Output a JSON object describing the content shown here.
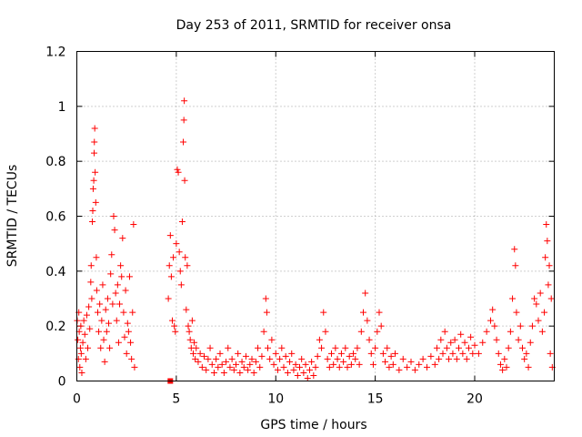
{
  "chart_data": {
    "type": "scatter",
    "title": "Day 253 of 2011, SRMTID for receiver onsa",
    "xlabel": "GPS time / hours",
    "ylabel": "SRMTID / TECUs",
    "xlim": [
      0,
      24
    ],
    "ylim": [
      0,
      1.2
    ],
    "xticks": [
      0,
      5,
      10,
      15,
      20
    ],
    "xtick_labels": [
      "0",
      "5",
      "10",
      "15",
      "20"
    ],
    "yticks": [
      0,
      0.2,
      0.4,
      0.6,
      0.8,
      1,
      1.2
    ],
    "ytick_labels": [
      "0",
      "0.2",
      "0.4",
      "0.6",
      "0.8",
      "1",
      "1.2"
    ],
    "grid": true,
    "marker": "plus",
    "color": "#ff0000",
    "series": [
      {
        "name": "onsa",
        "points": [
          [
            0.02,
            0.22
          ],
          [
            0.05,
            0.15
          ],
          [
            0.08,
            0.08
          ],
          [
            0.1,
            0.25
          ],
          [
            0.12,
            0.18
          ],
          [
            0.15,
            0.05
          ],
          [
            0.18,
            0.12
          ],
          [
            0.2,
            0.2
          ],
          [
            0.22,
            0.1
          ],
          [
            0.25,
            0.03
          ],
          [
            0.3,
            0.14
          ],
          [
            0.35,
            0.22
          ],
          [
            0.4,
            0.17
          ],
          [
            0.45,
            0.08
          ],
          [
            0.5,
            0.24
          ],
          [
            0.55,
            0.12
          ],
          [
            0.6,
            0.27
          ],
          [
            0.65,
            0.19
          ],
          [
            0.7,
            0.36
          ],
          [
            0.72,
            0.42
          ],
          [
            0.75,
            0.3
          ],
          [
            0.78,
            0.58
          ],
          [
            0.8,
            0.62
          ],
          [
            0.82,
            0.7
          ],
          [
            0.85,
            0.73
          ],
          [
            0.87,
            0.83
          ],
          [
            0.88,
            0.87
          ],
          [
            0.9,
            0.92
          ],
          [
            0.92,
            0.76
          ],
          [
            0.95,
            0.65
          ],
          [
            0.98,
            0.45
          ],
          [
            1.0,
            0.33
          ],
          [
            1.05,
            0.25
          ],
          [
            1.1,
            0.18
          ],
          [
            1.15,
            0.28
          ],
          [
            1.2,
            0.12
          ],
          [
            1.25,
            0.22
          ],
          [
            1.3,
            0.35
          ],
          [
            1.35,
            0.15
          ],
          [
            1.4,
            0.07
          ],
          [
            1.45,
            0.26
          ],
          [
            1.5,
            0.18
          ],
          [
            1.55,
            0.3
          ],
          [
            1.6,
            0.21
          ],
          [
            1.65,
            0.12
          ],
          [
            1.7,
            0.39
          ],
          [
            1.75,
            0.46
          ],
          [
            1.8,
            0.28
          ],
          [
            1.85,
            0.6
          ],
          [
            1.9,
            0.55
          ],
          [
            1.95,
            0.32
          ],
          [
            2.0,
            0.22
          ],
          [
            2.05,
            0.35
          ],
          [
            2.1,
            0.14
          ],
          [
            2.15,
            0.28
          ],
          [
            2.2,
            0.42
          ],
          [
            2.25,
            0.38
          ],
          [
            2.3,
            0.52
          ],
          [
            2.35,
            0.25
          ],
          [
            2.4,
            0.16
          ],
          [
            2.45,
            0.33
          ],
          [
            2.5,
            0.1
          ],
          [
            2.55,
            0.21
          ],
          [
            2.6,
            0.18
          ],
          [
            2.65,
            0.38
          ],
          [
            2.7,
            0.14
          ],
          [
            2.75,
            0.08
          ],
          [
            2.8,
            0.25
          ],
          [
            2.85,
            0.57
          ],
          [
            2.9,
            0.05
          ],
          [
            4.6,
            0.3
          ],
          [
            4.65,
            0.42
          ],
          [
            4.7,
            0.53
          ],
          [
            4.75,
            0.38
          ],
          [
            4.8,
            0.22
          ],
          [
            4.85,
            0.45
          ],
          [
            4.9,
            0.2
          ],
          [
            4.95,
            0.18
          ],
          [
            5.0,
            0.5
          ],
          [
            5.05,
            0.77
          ],
          [
            5.1,
            0.76
          ],
          [
            5.15,
            0.47
          ],
          [
            5.2,
            0.4
          ],
          [
            5.25,
            0.35
          ],
          [
            5.3,
            0.58
          ],
          [
            5.35,
            0.87
          ],
          [
            5.38,
            0.95
          ],
          [
            5.4,
            1.02
          ],
          [
            5.42,
            0.73
          ],
          [
            5.45,
            0.45
          ],
          [
            5.5,
            0.26
          ],
          [
            5.55,
            0.42
          ],
          [
            5.6,
            0.2
          ],
          [
            5.65,
            0.18
          ],
          [
            5.7,
            0.15
          ],
          [
            5.75,
            0.12
          ],
          [
            5.8,
            0.22
          ],
          [
            5.85,
            0.1
          ],
          [
            5.9,
            0.14
          ],
          [
            5.95,
            0.08
          ],
          [
            6.0,
            0.12
          ],
          [
            6.1,
            0.07
          ],
          [
            6.2,
            0.1
          ],
          [
            6.3,
            0.05
          ],
          [
            6.4,
            0.09
          ],
          [
            6.5,
            0.04
          ],
          [
            6.6,
            0.08
          ],
          [
            6.7,
            0.12
          ],
          [
            6.8,
            0.06
          ],
          [
            6.9,
            0.03
          ],
          [
            7.0,
            0.08
          ],
          [
            7.1,
            0.05
          ],
          [
            7.2,
            0.1
          ],
          [
            7.3,
            0.06
          ],
          [
            7.4,
            0.03
          ],
          [
            7.5,
            0.07
          ],
          [
            7.6,
            0.12
          ],
          [
            7.7,
            0.05
          ],
          [
            7.8,
            0.08
          ],
          [
            7.9,
            0.04
          ],
          [
            8.0,
            0.06
          ],
          [
            8.1,
            0.1
          ],
          [
            8.2,
            0.03
          ],
          [
            8.3,
            0.07
          ],
          [
            8.4,
            0.05
          ],
          [
            8.5,
            0.09
          ],
          [
            8.6,
            0.04
          ],
          [
            8.7,
            0.06
          ],
          [
            8.8,
            0.08
          ],
          [
            8.9,
            0.03
          ],
          [
            9.0,
            0.07
          ],
          [
            9.1,
            0.12
          ],
          [
            9.2,
            0.05
          ],
          [
            9.3,
            0.09
          ],
          [
            9.4,
            0.18
          ],
          [
            9.5,
            0.3
          ],
          [
            9.55,
            0.25
          ],
          [
            9.6,
            0.12
          ],
          [
            9.7,
            0.08
          ],
          [
            9.8,
            0.15
          ],
          [
            9.9,
            0.06
          ],
          [
            10.0,
            0.1
          ],
          [
            10.1,
            0.04
          ],
          [
            10.2,
            0.08
          ],
          [
            10.3,
            0.12
          ],
          [
            10.4,
            0.05
          ],
          [
            10.5,
            0.09
          ],
          [
            10.6,
            0.03
          ],
          [
            10.7,
            0.07
          ],
          [
            10.8,
            0.1
          ],
          [
            10.9,
            0.04
          ],
          [
            11.0,
            0.06
          ],
          [
            11.1,
            0.02
          ],
          [
            11.2,
            0.05
          ],
          [
            11.3,
            0.08
          ],
          [
            11.4,
            0.03
          ],
          [
            11.5,
            0.06
          ],
          [
            11.6,
            0.01
          ],
          [
            11.7,
            0.04
          ],
          [
            11.8,
            0.07
          ],
          [
            11.9,
            0.02
          ],
          [
            12.0,
            0.05
          ],
          [
            12.1,
            0.09
          ],
          [
            12.2,
            0.15
          ],
          [
            12.3,
            0.12
          ],
          [
            12.4,
            0.25
          ],
          [
            12.5,
            0.18
          ],
          [
            12.6,
            0.08
          ],
          [
            12.7,
            0.05
          ],
          [
            12.8,
            0.1
          ],
          [
            12.9,
            0.06
          ],
          [
            13.0,
            0.12
          ],
          [
            13.1,
            0.08
          ],
          [
            13.2,
            0.05
          ],
          [
            13.3,
            0.1
          ],
          [
            13.4,
            0.07
          ],
          [
            13.5,
            0.12
          ],
          [
            13.6,
            0.05
          ],
          [
            13.7,
            0.09
          ],
          [
            13.8,
            0.06
          ],
          [
            13.9,
            0.1
          ],
          [
            14.0,
            0.08
          ],
          [
            14.1,
            0.12
          ],
          [
            14.2,
            0.06
          ],
          [
            14.3,
            0.18
          ],
          [
            14.4,
            0.25
          ],
          [
            14.5,
            0.32
          ],
          [
            14.6,
            0.22
          ],
          [
            14.7,
            0.15
          ],
          [
            14.8,
            0.1
          ],
          [
            14.9,
            0.06
          ],
          [
            15.0,
            0.12
          ],
          [
            15.1,
            0.18
          ],
          [
            15.2,
            0.25
          ],
          [
            15.3,
            0.2
          ],
          [
            15.4,
            0.1
          ],
          [
            15.5,
            0.07
          ],
          [
            15.6,
            0.12
          ],
          [
            15.7,
            0.05
          ],
          [
            15.8,
            0.09
          ],
          [
            15.9,
            0.06
          ],
          [
            16.0,
            0.1
          ],
          [
            16.2,
            0.04
          ],
          [
            16.4,
            0.08
          ],
          [
            16.6,
            0.05
          ],
          [
            16.8,
            0.07
          ],
          [
            17.0,
            0.04
          ],
          [
            17.2,
            0.06
          ],
          [
            17.4,
            0.08
          ],
          [
            17.6,
            0.05
          ],
          [
            17.8,
            0.09
          ],
          [
            18.0,
            0.06
          ],
          [
            18.1,
            0.12
          ],
          [
            18.2,
            0.08
          ],
          [
            18.3,
            0.15
          ],
          [
            18.4,
            0.1
          ],
          [
            18.5,
            0.18
          ],
          [
            18.6,
            0.12
          ],
          [
            18.7,
            0.08
          ],
          [
            18.8,
            0.14
          ],
          [
            18.9,
            0.1
          ],
          [
            19.0,
            0.15
          ],
          [
            19.1,
            0.08
          ],
          [
            19.2,
            0.12
          ],
          [
            19.3,
            0.17
          ],
          [
            19.4,
            0.1
          ],
          [
            19.5,
            0.14
          ],
          [
            19.6,
            0.08
          ],
          [
            19.7,
            0.12
          ],
          [
            19.8,
            0.16
          ],
          [
            19.9,
            0.1
          ],
          [
            20.0,
            0.13
          ],
          [
            20.2,
            0.1
          ],
          [
            20.4,
            0.14
          ],
          [
            20.6,
            0.18
          ],
          [
            20.8,
            0.22
          ],
          [
            20.9,
            0.26
          ],
          [
            21.0,
            0.2
          ],
          [
            21.1,
            0.15
          ],
          [
            21.2,
            0.1
          ],
          [
            21.3,
            0.06
          ],
          [
            21.4,
            0.04
          ],
          [
            21.5,
            0.08
          ],
          [
            21.6,
            0.05
          ],
          [
            21.7,
            0.12
          ],
          [
            21.8,
            0.18
          ],
          [
            21.9,
            0.3
          ],
          [
            22.0,
            0.48
          ],
          [
            22.05,
            0.42
          ],
          [
            22.1,
            0.25
          ],
          [
            22.2,
            0.15
          ],
          [
            22.3,
            0.2
          ],
          [
            22.4,
            0.12
          ],
          [
            22.5,
            0.08
          ],
          [
            22.6,
            0.1
          ],
          [
            22.7,
            0.05
          ],
          [
            22.8,
            0.14
          ],
          [
            22.9,
            0.2
          ],
          [
            23.0,
            0.3
          ],
          [
            23.1,
            0.28
          ],
          [
            23.2,
            0.22
          ],
          [
            23.3,
            0.32
          ],
          [
            23.4,
            0.18
          ],
          [
            23.5,
            0.25
          ],
          [
            23.55,
            0.45
          ],
          [
            23.6,
            0.57
          ],
          [
            23.65,
            0.51
          ],
          [
            23.7,
            0.35
          ],
          [
            23.75,
            0.42
          ],
          [
            23.8,
            0.1
          ],
          [
            23.85,
            0.3
          ],
          [
            23.9,
            0.05
          ]
        ]
      }
    ],
    "special_marks": [
      {
        "x": 4.7,
        "y": 0.0,
        "shape": "square"
      }
    ]
  }
}
